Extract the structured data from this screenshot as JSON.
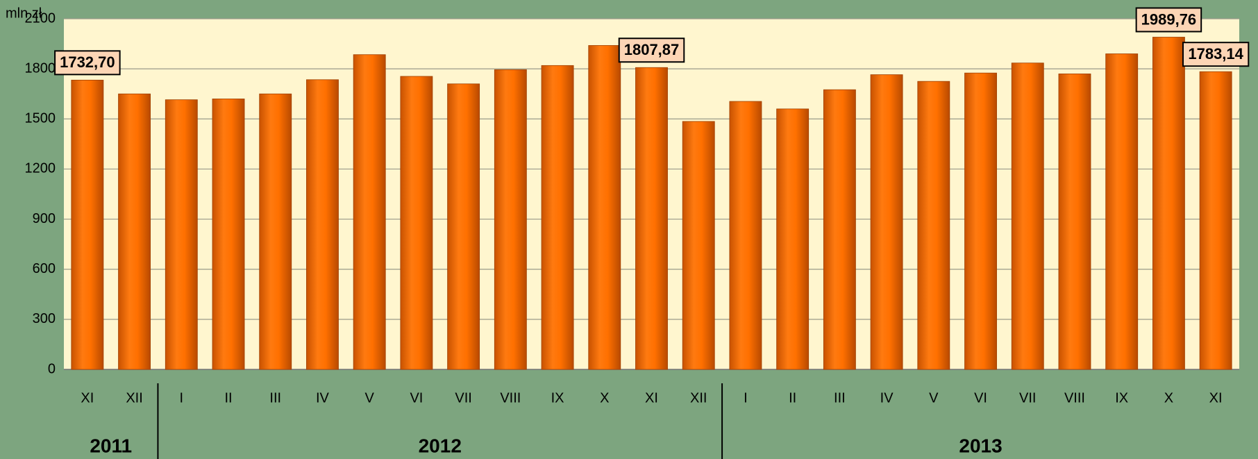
{
  "chart_data": {
    "type": "bar",
    "y_unit": "mln zł",
    "categories": [
      "XI",
      "XII",
      "I",
      "II",
      "III",
      "IV",
      "V",
      "VI",
      "VII",
      "VIII",
      "IX",
      "X",
      "XI",
      "XII",
      "I",
      "II",
      "III",
      "IV",
      "V",
      "VI",
      "VII",
      "VIII",
      "IX",
      "X",
      "XI"
    ],
    "years": [
      "2011",
      "2012",
      "2013"
    ],
    "values": [
      1732.7,
      1650,
      1615,
      1620,
      1650,
      1735,
      1885,
      1755,
      1710,
      1795,
      1820,
      1940,
      1807.87,
      1485,
      1605,
      1560,
      1675,
      1765,
      1725,
      1775,
      1835,
      1770,
      1890,
      1989.76,
      1783.14
    ],
    "value_labels": [
      "1732,70",
      null,
      null,
      null,
      null,
      null,
      null,
      null,
      null,
      null,
      null,
      null,
      "1807,87",
      null,
      null,
      null,
      null,
      null,
      null,
      null,
      null,
      null,
      null,
      "1989,76",
      "1783,14"
    ],
    "color": "#ff7000",
    "ylim": [
      0,
      2100
    ],
    "yticks": [
      0,
      300,
      600,
      900,
      1200,
      1500,
      1800,
      2100
    ],
    "grid": true
  }
}
